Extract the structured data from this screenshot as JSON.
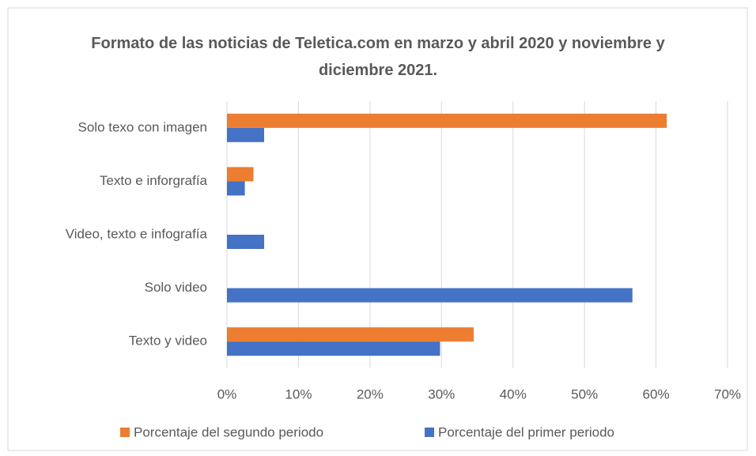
{
  "chart_data": {
    "type": "bar",
    "orientation": "horizontal",
    "title": "Formato de las noticias de Teletica.com en marzo y abril 2020 y noviembre y diciembre 2021.",
    "categories": [
      "Solo texo con imagen",
      "Texto e inforgrafía",
      "Video, texto e infografía",
      "Solo video",
      "Texto y video"
    ],
    "series": [
      {
        "name": "Porcentaje del segundo periodo",
        "color": "#ed7d31",
        "values": [
          61.5,
          3.7,
          0,
          0,
          34.5
        ]
      },
      {
        "name": "Porcentaje del primer periodo",
        "color": "#4472c4",
        "values": [
          5.2,
          2.5,
          5.2,
          56.7,
          29.8
        ]
      }
    ],
    "xlim": [
      0,
      70
    ],
    "xticks": [
      {
        "value": 0,
        "label": "0%"
      },
      {
        "value": 10,
        "label": "10%"
      },
      {
        "value": 20,
        "label": "20%"
      },
      {
        "value": 30,
        "label": "30%"
      },
      {
        "value": 40,
        "label": "40%"
      },
      {
        "value": 50,
        "label": "50%"
      },
      {
        "value": 60,
        "label": "60%"
      },
      {
        "value": 70,
        "label": "70%"
      }
    ],
    "grid": true,
    "legend": "bottom"
  }
}
